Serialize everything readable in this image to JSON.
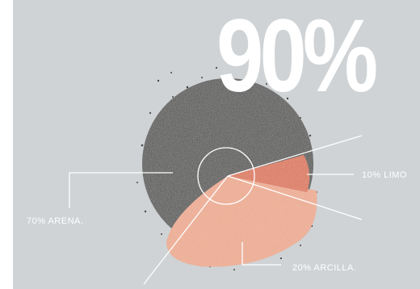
{
  "headline": "90%",
  "labels": {
    "arena": "70%  ARENA.",
    "limo": "10%  LIMO",
    "arcilla": "20%  ARCILLA."
  },
  "colors": {
    "background": "#cfd3d5",
    "sand": "#3a3937",
    "silt": "#d8643a",
    "clay": "#eaa182",
    "lines": "#ffffff"
  }
}
